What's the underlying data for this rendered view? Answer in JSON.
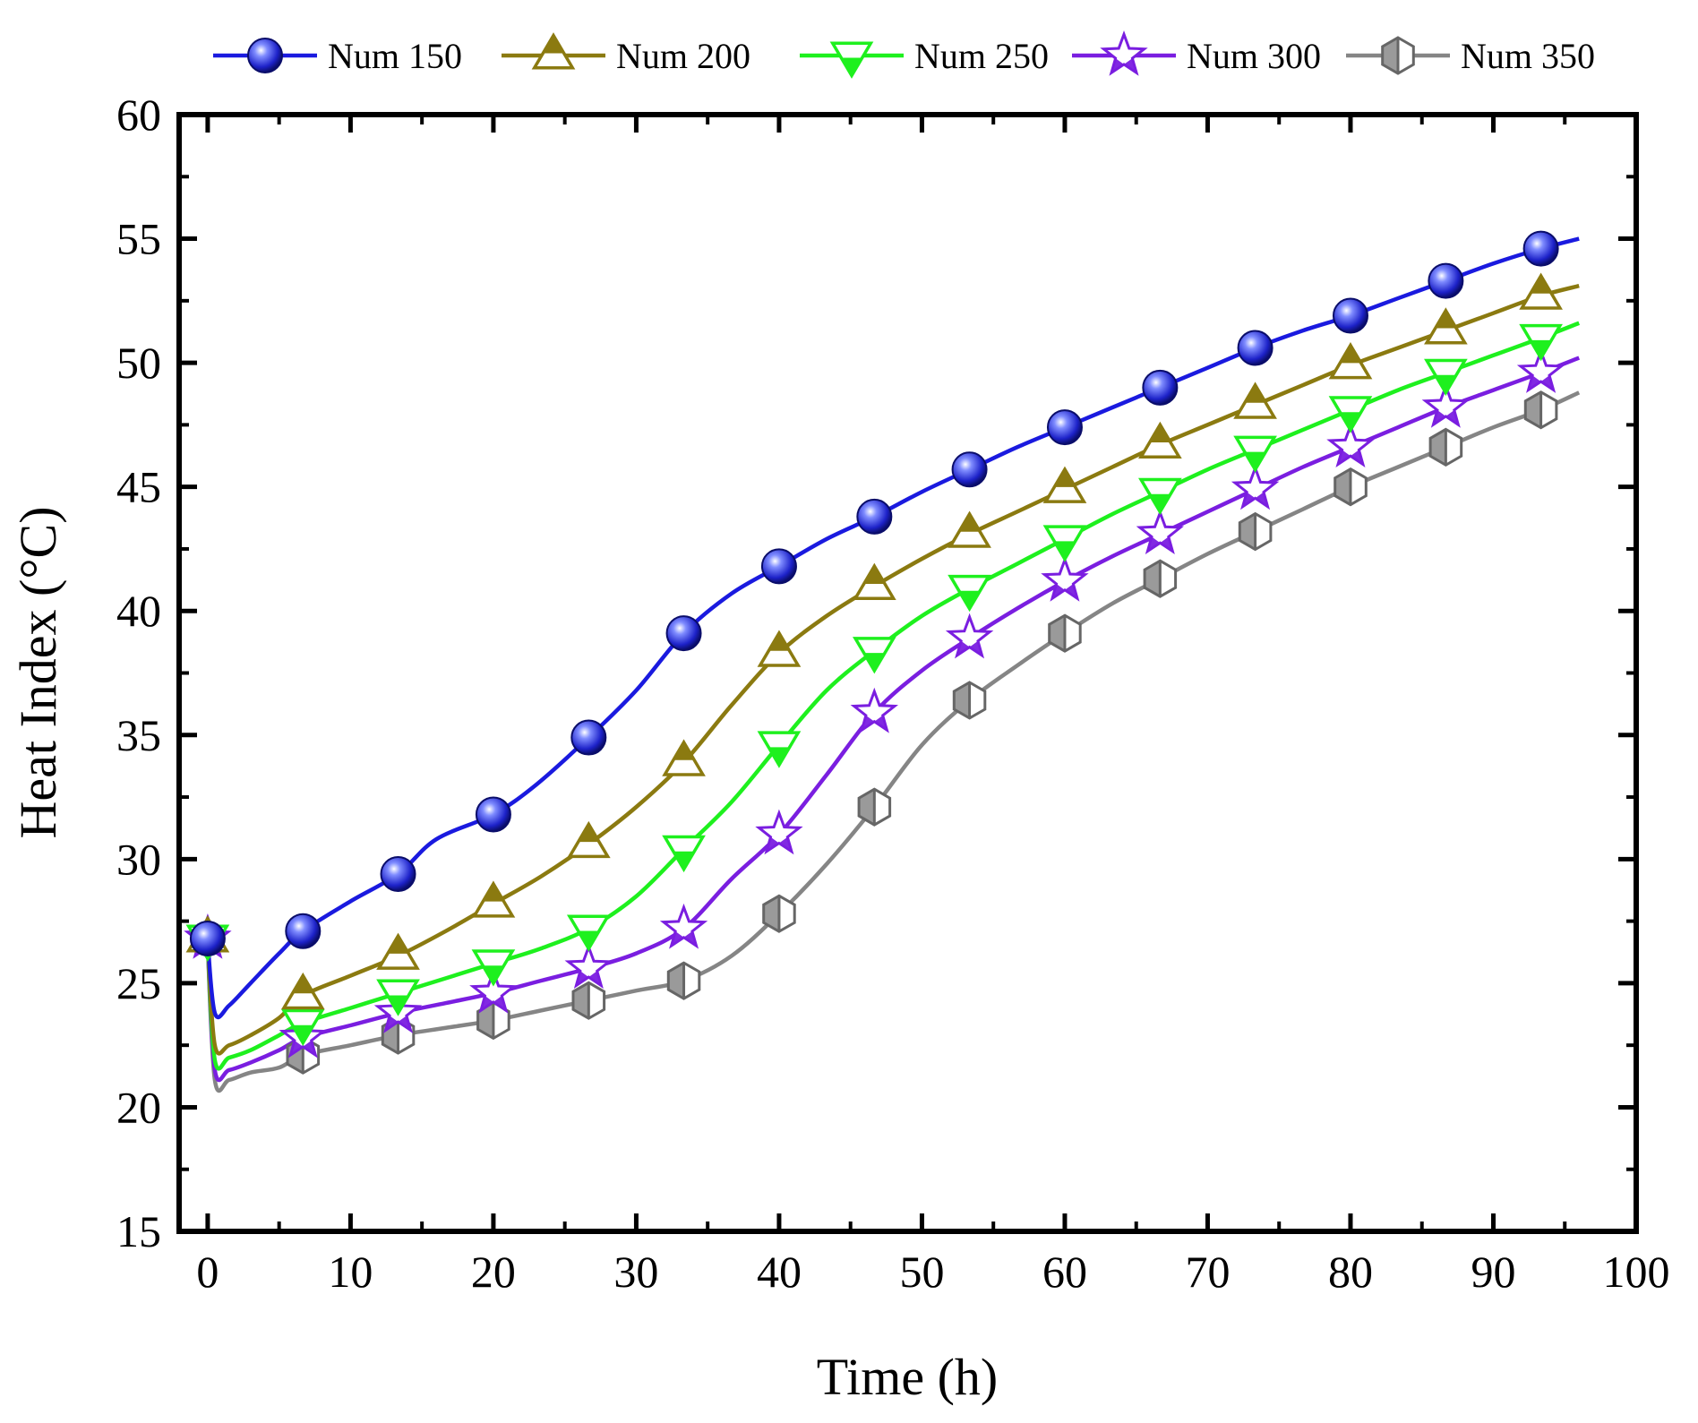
{
  "chart_data": {
    "type": "line",
    "title": "",
    "xlabel": "Time (h)",
    "ylabel": "Heat Index (°C)",
    "xlim": [
      -2,
      100
    ],
    "ylim": [
      15,
      60
    ],
    "xticks": [
      0,
      10,
      20,
      30,
      40,
      50,
      60,
      70,
      80,
      90,
      100
    ],
    "yticks": [
      15,
      20,
      25,
      30,
      35,
      40,
      45,
      50,
      55,
      60
    ],
    "legend_position": "top",
    "marker_x": [
      0,
      6.67,
      13.33,
      20,
      26.67,
      33.33,
      40,
      46.67,
      53.33,
      60,
      66.67,
      73.33,
      80,
      86.67,
      93.33
    ],
    "series": [
      {
        "name": "Num 150",
        "color": "#1a1adf",
        "marker": "sphere",
        "markers": [
          26.8,
          27.1,
          29.4,
          31.8,
          34.9,
          39.1,
          41.8,
          43.8,
          45.7,
          47.4,
          49.0,
          50.6,
          51.9,
          53.3,
          54.6
        ],
        "line": [
          [
            0,
            26.8
          ],
          [
            0.5,
            23.8
          ],
          [
            1.5,
            24.1
          ],
          [
            3,
            25.0
          ],
          [
            5,
            26.2
          ],
          [
            6.67,
            27.1
          ],
          [
            10,
            28.3
          ],
          [
            13.33,
            29.4
          ],
          [
            16,
            30.8
          ],
          [
            20,
            31.8
          ],
          [
            23,
            33.0
          ],
          [
            26.67,
            34.9
          ],
          [
            30,
            36.8
          ],
          [
            33.33,
            39.1
          ],
          [
            36.67,
            40.7
          ],
          [
            40,
            41.8
          ],
          [
            43.33,
            42.9
          ],
          [
            46.67,
            43.8
          ],
          [
            50,
            44.8
          ],
          [
            53.33,
            45.7
          ],
          [
            56.67,
            46.6
          ],
          [
            60,
            47.4
          ],
          [
            63.33,
            48.2
          ],
          [
            66.67,
            49.0
          ],
          [
            70,
            49.8
          ],
          [
            73.33,
            50.6
          ],
          [
            76.67,
            51.3
          ],
          [
            80,
            51.9
          ],
          [
            83.33,
            52.6
          ],
          [
            86.67,
            53.3
          ],
          [
            90,
            54.0
          ],
          [
            93.33,
            54.6
          ],
          [
            96,
            55.0
          ]
        ]
      },
      {
        "name": "Num 200",
        "color": "#8b7a10",
        "marker": "triangle-up-open",
        "markers": [
          26.8,
          24.5,
          26.1,
          28.2,
          30.6,
          33.9,
          38.3,
          41.0,
          43.1,
          44.9,
          46.7,
          48.3,
          49.9,
          51.3,
          52.7
        ],
        "line": [
          [
            0,
            26.8
          ],
          [
            0.5,
            22.5
          ],
          [
            1.5,
            22.5
          ],
          [
            3,
            22.9
          ],
          [
            5,
            23.6
          ],
          [
            6.67,
            24.5
          ],
          [
            10,
            25.3
          ],
          [
            13.33,
            26.1
          ],
          [
            16.67,
            27.1
          ],
          [
            20,
            28.2
          ],
          [
            23.33,
            29.3
          ],
          [
            26.67,
            30.6
          ],
          [
            30,
            32.1
          ],
          [
            33.33,
            33.9
          ],
          [
            36.67,
            36.2
          ],
          [
            40,
            38.3
          ],
          [
            43.33,
            39.8
          ],
          [
            46.67,
            41.0
          ],
          [
            50,
            42.1
          ],
          [
            53.33,
            43.1
          ],
          [
            56.67,
            44.0
          ],
          [
            60,
            44.9
          ],
          [
            63.33,
            45.8
          ],
          [
            66.67,
            46.7
          ],
          [
            70,
            47.5
          ],
          [
            73.33,
            48.3
          ],
          [
            76.67,
            49.1
          ],
          [
            80,
            49.9
          ],
          [
            83.33,
            50.6
          ],
          [
            86.67,
            51.3
          ],
          [
            90,
            52.0
          ],
          [
            93.33,
            52.7
          ],
          [
            96,
            53.1
          ]
        ]
      },
      {
        "name": "Num 250",
        "color": "#1ef01e",
        "marker": "triangle-down-open",
        "markers": [
          26.8,
          23.4,
          24.6,
          25.8,
          27.2,
          30.4,
          34.6,
          38.4,
          40.9,
          42.9,
          44.8,
          46.5,
          48.1,
          49.6,
          51.0
        ],
        "line": [
          [
            0,
            26.8
          ],
          [
            0.5,
            21.9
          ],
          [
            1.5,
            22.0
          ],
          [
            3,
            22.3
          ],
          [
            5,
            22.9
          ],
          [
            6.67,
            23.4
          ],
          [
            10,
            24.0
          ],
          [
            13.33,
            24.6
          ],
          [
            16.67,
            25.2
          ],
          [
            20,
            25.8
          ],
          [
            23.33,
            26.4
          ],
          [
            26.67,
            27.2
          ],
          [
            30,
            28.5
          ],
          [
            33.33,
            30.4
          ],
          [
            36.67,
            32.3
          ],
          [
            40,
            34.6
          ],
          [
            43.33,
            36.8
          ],
          [
            46.67,
            38.4
          ],
          [
            50,
            39.8
          ],
          [
            53.33,
            40.9
          ],
          [
            56.67,
            41.9
          ],
          [
            60,
            42.9
          ],
          [
            63.33,
            43.9
          ],
          [
            66.67,
            44.8
          ],
          [
            70,
            45.7
          ],
          [
            73.33,
            46.5
          ],
          [
            76.67,
            47.3
          ],
          [
            80,
            48.1
          ],
          [
            83.33,
            48.9
          ],
          [
            86.67,
            49.6
          ],
          [
            90,
            50.3
          ],
          [
            93.33,
            51.0
          ],
          [
            96,
            51.6
          ]
        ]
      },
      {
        "name": "Num 300",
        "color": "#7a1ee0",
        "marker": "star",
        "markers": [
          26.8,
          22.8,
          23.8,
          24.6,
          25.6,
          27.2,
          31.0,
          35.9,
          38.9,
          41.2,
          43.1,
          44.9,
          46.6,
          48.2,
          49.6
        ],
        "line": [
          [
            0,
            26.8
          ],
          [
            0.5,
            21.5
          ],
          [
            1.5,
            21.5
          ],
          [
            3,
            21.8
          ],
          [
            5,
            22.3
          ],
          [
            6.67,
            22.8
          ],
          [
            10,
            23.3
          ],
          [
            13.33,
            23.8
          ],
          [
            16.67,
            24.2
          ],
          [
            20,
            24.6
          ],
          [
            23.33,
            25.1
          ],
          [
            26.67,
            25.6
          ],
          [
            30,
            26.2
          ],
          [
            33.33,
            27.2
          ],
          [
            36.67,
            29.2
          ],
          [
            40,
            31.0
          ],
          [
            43.33,
            33.4
          ],
          [
            46.67,
            35.9
          ],
          [
            50,
            37.6
          ],
          [
            53.33,
            38.9
          ],
          [
            56.67,
            40.1
          ],
          [
            60,
            41.2
          ],
          [
            63.33,
            42.2
          ],
          [
            66.67,
            43.1
          ],
          [
            70,
            44.0
          ],
          [
            73.33,
            44.9
          ],
          [
            76.67,
            45.8
          ],
          [
            80,
            46.6
          ],
          [
            83.33,
            47.4
          ],
          [
            86.67,
            48.2
          ],
          [
            90,
            48.9
          ],
          [
            93.33,
            49.6
          ],
          [
            96,
            50.2
          ]
        ]
      },
      {
        "name": "Num 350",
        "color": "#858585",
        "marker": "hexagon-half",
        "markers": [
          26.8,
          22.1,
          22.9,
          23.5,
          24.3,
          25.1,
          27.8,
          32.1,
          36.4,
          39.1,
          41.3,
          43.2,
          45.0,
          46.6,
          48.1
        ],
        "line": [
          [
            0,
            26.8
          ],
          [
            0.5,
            21.1
          ],
          [
            1.5,
            21.1
          ],
          [
            3,
            21.4
          ],
          [
            5,
            21.6
          ],
          [
            6.67,
            22.1
          ],
          [
            10,
            22.5
          ],
          [
            13.33,
            22.9
          ],
          [
            16.67,
            23.2
          ],
          [
            20,
            23.5
          ],
          [
            23.33,
            23.9
          ],
          [
            26.67,
            24.3
          ],
          [
            30,
            24.7
          ],
          [
            33.33,
            25.1
          ],
          [
            36.67,
            26.1
          ],
          [
            40,
            27.8
          ],
          [
            43.33,
            29.8
          ],
          [
            46.67,
            32.1
          ],
          [
            50,
            34.6
          ],
          [
            53.33,
            36.4
          ],
          [
            56.67,
            37.8
          ],
          [
            60,
            39.1
          ],
          [
            63.33,
            40.3
          ],
          [
            66.67,
            41.3
          ],
          [
            70,
            42.3
          ],
          [
            73.33,
            43.2
          ],
          [
            76.67,
            44.1
          ],
          [
            80,
            45.0
          ],
          [
            83.33,
            45.8
          ],
          [
            86.67,
            46.6
          ],
          [
            90,
            47.4
          ],
          [
            93.33,
            48.1
          ],
          [
            96,
            48.8
          ]
        ]
      }
    ]
  }
}
